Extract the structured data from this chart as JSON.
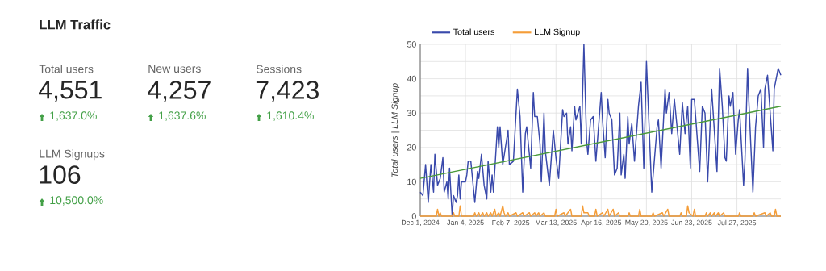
{
  "chart_data": [
    {
      "type": "other",
      "title": "LLM Traffic",
      "annotations": [
        "Total users",
        "4,551",
        "1,637.0%",
        "New users",
        "4,257",
        "1,637.6%",
        "Sessions",
        "7,423",
        "1,610.4%",
        "LLM Signups",
        "106",
        "10,500.0%"
      ]
    },
    {
      "type": "line",
      "ylabel": "Total users | LLM Signup",
      "grid": true,
      "legend": "top left",
      "xlim": [
        "2024-12-01",
        "2025-08-29"
      ],
      "xticks": [
        {
          "value": "2024-12-01",
          "label": "Dec 1, 2024"
        },
        {
          "value": "2025-01-04",
          "label": "Jan 4, 2025"
        },
        {
          "value": "2025-02-07",
          "label": "Feb 7, 2025"
        },
        {
          "value": "2025-03-13",
          "label": "Mar 13, 2025"
        },
        {
          "value": "2025-04-16",
          "label": "Apr 16, 2025"
        },
        {
          "value": "2025-05-20",
          "label": "May 20, 2025"
        },
        {
          "value": "2025-06-23",
          "label": "Jun 23, 2025"
        },
        {
          "value": "2025-07-27",
          "label": "Jul 27, 2025"
        }
      ],
      "ylim": [
        0,
        50
      ],
      "yticks": [
        0,
        {
          "value": 5,
          "label": null
        },
        10,
        {
          "value": 15,
          "label": null
        },
        20,
        {
          "value": 25,
          "label": null
        },
        30,
        {
          "value": 35,
          "label": null
        },
        40,
        {
          "value": 45,
          "label": null
        },
        50
      ],
      "series": [
        {
          "name": "Total users",
          "color": "#3949ab",
          "x": [
            "2024-12-01",
            "2024-12-03",
            "2024-12-05",
            "2024-12-07",
            "2024-12-09",
            "2024-12-11",
            "2024-12-12",
            "2024-12-14",
            "2024-12-16",
            "2024-12-18",
            "2024-12-19",
            "2024-12-21",
            "2024-12-22",
            "2024-12-23",
            "2024-12-25",
            "2024-12-26",
            "2024-12-28",
            "2024-12-29",
            "2024-12-30",
            "2024-12-31",
            "2025-01-01",
            "2025-01-04",
            "2025-01-05",
            "2025-01-06",
            "2025-01-08",
            "2025-01-11",
            "2025-01-13",
            "2025-01-14",
            "2025-01-16",
            "2025-01-18",
            "2025-01-20",
            "2025-01-21",
            "2025-01-23",
            "2025-01-24",
            "2025-01-25",
            "2025-01-28",
            "2025-01-29",
            "2025-01-30",
            "2025-02-01",
            "2025-02-03",
            "2025-02-05",
            "2025-02-06",
            "2025-02-09",
            "2025-02-12",
            "2025-02-14",
            "2025-02-16",
            "2025-02-18",
            "2025-02-19",
            "2025-02-22",
            "2025-02-24",
            "2025-02-25",
            "2025-02-27",
            "2025-03-01",
            "2025-03-02",
            "2025-03-04",
            "2025-03-05",
            "2025-03-08",
            "2025-03-11",
            "2025-03-13",
            "2025-03-15",
            "2025-03-18",
            "2025-03-19",
            "2025-03-21",
            "2025-03-22",
            "2025-03-24",
            "2025-03-25",
            "2025-03-27",
            "2025-03-28",
            "2025-03-31",
            "2025-04-01",
            "2025-04-03",
            "2025-04-05",
            "2025-04-06",
            "2025-04-08",
            "2025-04-10",
            "2025-04-12",
            "2025-04-16",
            "2025-04-17",
            "2025-04-19",
            "2025-04-21",
            "2025-04-22",
            "2025-04-24",
            "2025-04-26",
            "2025-04-28",
            "2025-04-30",
            "2025-05-01",
            "2025-05-03",
            "2025-05-04",
            "2025-05-06",
            "2025-05-07",
            "2025-05-09",
            "2025-05-11",
            "2025-05-14",
            "2025-05-16",
            "2025-05-18",
            "2025-05-20",
            "2025-05-24",
            "2025-05-28",
            "2025-05-29",
            "2025-05-31",
            "2025-06-03",
            "2025-06-04",
            "2025-06-06",
            "2025-06-08",
            "2025-06-10",
            "2025-06-11",
            "2025-06-14",
            "2025-06-16",
            "2025-06-18",
            "2025-06-20",
            "2025-06-22",
            "2025-06-23",
            "2025-06-25",
            "2025-06-29",
            "2025-07-01",
            "2025-07-03",
            "2025-07-05",
            "2025-07-08",
            "2025-07-09",
            "2025-07-12",
            "2025-07-14",
            "2025-07-16",
            "2025-07-18",
            "2025-07-19",
            "2025-07-21",
            "2025-07-22",
            "2025-07-24",
            "2025-07-26",
            "2025-07-28",
            "2025-07-29",
            "2025-08-01",
            "2025-08-02",
            "2025-08-04",
            "2025-08-05",
            "2025-08-08",
            "2025-08-10",
            "2025-08-12",
            "2025-08-14",
            "2025-08-16",
            "2025-08-17",
            "2025-08-19",
            "2025-08-23",
            "2025-08-24",
            "2025-08-27",
            "2025-08-29"
          ],
          "values": [
            7,
            6,
            15,
            4,
            15,
            7,
            18,
            9,
            11,
            17,
            7,
            10,
            5,
            14,
            0,
            6,
            4,
            6,
            12,
            5,
            10,
            10,
            12,
            16,
            16,
            4,
            13,
            11,
            18,
            9,
            5,
            16,
            7,
            12,
            7,
            26,
            20,
            26,
            15,
            20,
            25,
            15,
            16,
            37,
            29,
            7,
            24,
            26,
            14,
            36,
            29,
            29,
            21,
            10,
            30,
            19,
            9,
            25,
            17,
            11,
            31,
            29,
            30,
            21,
            26,
            19,
            32,
            28,
            32,
            21,
            50,
            22,
            18,
            28,
            29,
            16,
            36,
            28,
            17,
            34,
            30,
            28,
            12,
            14,
            30,
            12,
            18,
            11,
            29,
            21,
            27,
            16,
            32,
            39,
            14,
            45,
            7,
            26,
            28,
            14,
            37,
            30,
            36,
            24,
            34,
            30,
            18,
            33,
            24,
            32,
            14,
            34,
            34,
            13,
            32,
            30,
            10,
            37,
            31,
            13,
            43,
            32,
            17,
            16,
            35,
            32,
            36,
            18,
            28,
            31,
            9,
            16,
            43,
            33,
            7,
            26,
            35,
            37,
            20,
            37,
            41,
            19,
            37,
            43,
            41
          ]
        },
        {
          "name": "LLM Signup",
          "color": "#f59d38",
          "x": [
            "2024-12-01",
            "2024-12-13",
            "2024-12-14",
            "2024-12-15",
            "2024-12-16",
            "2024-12-17",
            "2024-12-25",
            "2024-12-26",
            "2024-12-27",
            "2024-12-30",
            "2024-12-31",
            "2025-01-01",
            "2025-01-10",
            "2025-01-11",
            "2025-01-12",
            "2025-01-14",
            "2025-01-15",
            "2025-01-17",
            "2025-01-18",
            "2025-01-20",
            "2025-01-21",
            "2025-01-23",
            "2025-01-24",
            "2025-01-26",
            "2025-01-27",
            "2025-01-29",
            "2025-01-30",
            "2025-02-01",
            "2025-02-02",
            "2025-02-03",
            "2025-02-05",
            "2025-02-06",
            "2025-02-11",
            "2025-02-12",
            "2025-02-16",
            "2025-02-17",
            "2025-02-21",
            "2025-02-22",
            "2025-02-25",
            "2025-02-26",
            "2025-02-28",
            "2025-03-01",
            "2025-03-04",
            "2025-03-05",
            "2025-03-12",
            "2025-03-13",
            "2025-03-14",
            "2025-03-19",
            "2025-03-20",
            "2025-03-24",
            "2025-03-25",
            "2025-04-01",
            "2025-04-02",
            "2025-04-03",
            "2025-04-06",
            "2025-04-07",
            "2025-04-11",
            "2025-04-12",
            "2025-04-13",
            "2025-04-17",
            "2025-04-18",
            "2025-04-21",
            "2025-04-22",
            "2025-04-25",
            "2025-04-26",
            "2025-04-29",
            "2025-04-30",
            "2025-05-06",
            "2025-05-07",
            "2025-05-08",
            "2025-05-14",
            "2025-05-15",
            "2025-05-16",
            "2025-05-24",
            "2025-05-25",
            "2025-05-26",
            "2025-06-01",
            "2025-06-02",
            "2025-06-05",
            "2025-06-06",
            "2025-06-14",
            "2025-06-15",
            "2025-06-16",
            "2025-06-19",
            "2025-06-20",
            "2025-06-21",
            "2025-06-24",
            "2025-06-25",
            "2025-06-26",
            "2025-07-03",
            "2025-07-04",
            "2025-07-05",
            "2025-07-07",
            "2025-07-08",
            "2025-07-10",
            "2025-07-11",
            "2025-07-13",
            "2025-07-14",
            "2025-07-17",
            "2025-07-18",
            "2025-07-28",
            "2025-07-29",
            "2025-07-30",
            "2025-08-08",
            "2025-08-09",
            "2025-08-10",
            "2025-08-17",
            "2025-08-18",
            "2025-08-21",
            "2025-08-22",
            "2025-08-24",
            "2025-08-25",
            "2025-08-26",
            "2025-08-29"
          ],
          "values": [
            0,
            0,
            2,
            0,
            1,
            0,
            0,
            1,
            0,
            0,
            3,
            0,
            0,
            1,
            0,
            1,
            0,
            1,
            0,
            1,
            0,
            1,
            0,
            2,
            0,
            1,
            0,
            3,
            1,
            0,
            1,
            0,
            1,
            0,
            1,
            0,
            1,
            0,
            1,
            0,
            1,
            0,
            1,
            0,
            0,
            2,
            0,
            1,
            0,
            2,
            0,
            0,
            3,
            1,
            1,
            0,
            0,
            2,
            0,
            1,
            0,
            2,
            0,
            2,
            0,
            1,
            0,
            0,
            1,
            0,
            0,
            2,
            0,
            0,
            1,
            0,
            1,
            0,
            2,
            0,
            0,
            1,
            0,
            0,
            3,
            1,
            0,
            2,
            0,
            0,
            1,
            0,
            1,
            0,
            1,
            0,
            1,
            0,
            1,
            0,
            0,
            1,
            0,
            0,
            1,
            0,
            1,
            0,
            1,
            0,
            0,
            2,
            0,
            0
          ]
        },
        {
          "color": "#4a9a3a",
          "x": [
            "2024-12-01",
            "2025-08-29"
          ],
          "values": [
            11,
            32
          ]
        }
      ]
    }
  ]
}
